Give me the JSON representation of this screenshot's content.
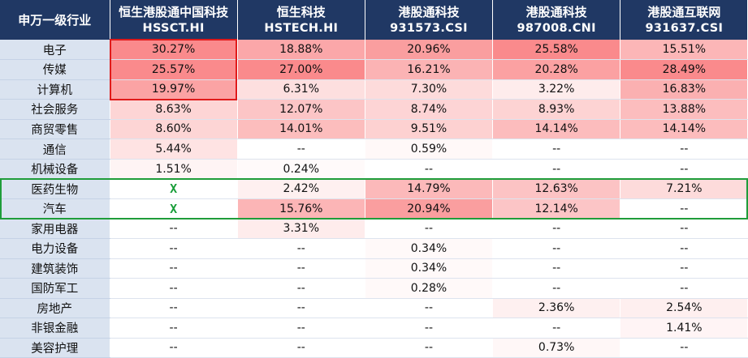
{
  "chart_data": {
    "type": "table",
    "corner_header": "申万一级行业",
    "columns": [
      {
        "name": "恒生港股通中国科技",
        "code": "HSSCT.HI"
      },
      {
        "name": "恒生科技",
        "code": "HSTECH.HI"
      },
      {
        "name": "港股通科技",
        "code": "931573.CSI"
      },
      {
        "name": "港股通科技",
        "code": "987008.CNI"
      },
      {
        "name": "港股通互联网",
        "code": "931637.CSI"
      }
    ],
    "rows": [
      {
        "industry": "电子",
        "values": [
          "30.27%",
          "18.88%",
          "20.96%",
          "25.58%",
          "15.51%"
        ]
      },
      {
        "industry": "传媒",
        "values": [
          "25.57%",
          "27.00%",
          "16.21%",
          "20.28%",
          "28.49%"
        ]
      },
      {
        "industry": "计算机",
        "values": [
          "19.97%",
          "6.31%",
          "7.30%",
          "3.22%",
          "16.83%"
        ]
      },
      {
        "industry": "社会服务",
        "values": [
          "8.63%",
          "12.07%",
          "8.74%",
          "8.93%",
          "13.88%"
        ]
      },
      {
        "industry": "商贸零售",
        "values": [
          "8.60%",
          "14.01%",
          "9.51%",
          "14.14%",
          "14.14%"
        ]
      },
      {
        "industry": "通信",
        "values": [
          "5.44%",
          "--",
          "0.59%",
          "--",
          "--"
        ]
      },
      {
        "industry": "机械设备",
        "values": [
          "1.51%",
          "0.24%",
          "--",
          "--",
          "--"
        ]
      },
      {
        "industry": "医药生物",
        "values": [
          "X",
          "2.42%",
          "14.79%",
          "12.63%",
          "7.21%"
        ]
      },
      {
        "industry": "汽车",
        "values": [
          "X",
          "15.76%",
          "20.94%",
          "12.14%",
          "--"
        ]
      },
      {
        "industry": "家用电器",
        "values": [
          "--",
          "3.31%",
          "--",
          "--",
          "--"
        ]
      },
      {
        "industry": "电力设备",
        "values": [
          "--",
          "--",
          "0.34%",
          "--",
          "--"
        ]
      },
      {
        "industry": "建筑装饰",
        "values": [
          "--",
          "--",
          "0.34%",
          "--",
          "--"
        ]
      },
      {
        "industry": "国防军工",
        "values": [
          "--",
          "--",
          "0.28%",
          "--",
          "--"
        ]
      },
      {
        "industry": "房地产",
        "values": [
          "--",
          "--",
          "--",
          "2.36%",
          "2.54%"
        ]
      },
      {
        "industry": "非银金融",
        "values": [
          "--",
          "--",
          "--",
          "--",
          "1.41%"
        ]
      },
      {
        "industry": "美容护理",
        "values": [
          "--",
          "--",
          "--",
          "0.73%",
          "--"
        ]
      }
    ],
    "heatmap_color": "#f8696b",
    "highlights": [
      {
        "color": "#e01b1b",
        "rows": [
          0,
          2
        ],
        "cols": [
          0,
          0
        ]
      },
      {
        "color": "#1f9d3a",
        "rows": [
          7,
          8
        ],
        "cols": [
          -1,
          4
        ]
      }
    ]
  }
}
